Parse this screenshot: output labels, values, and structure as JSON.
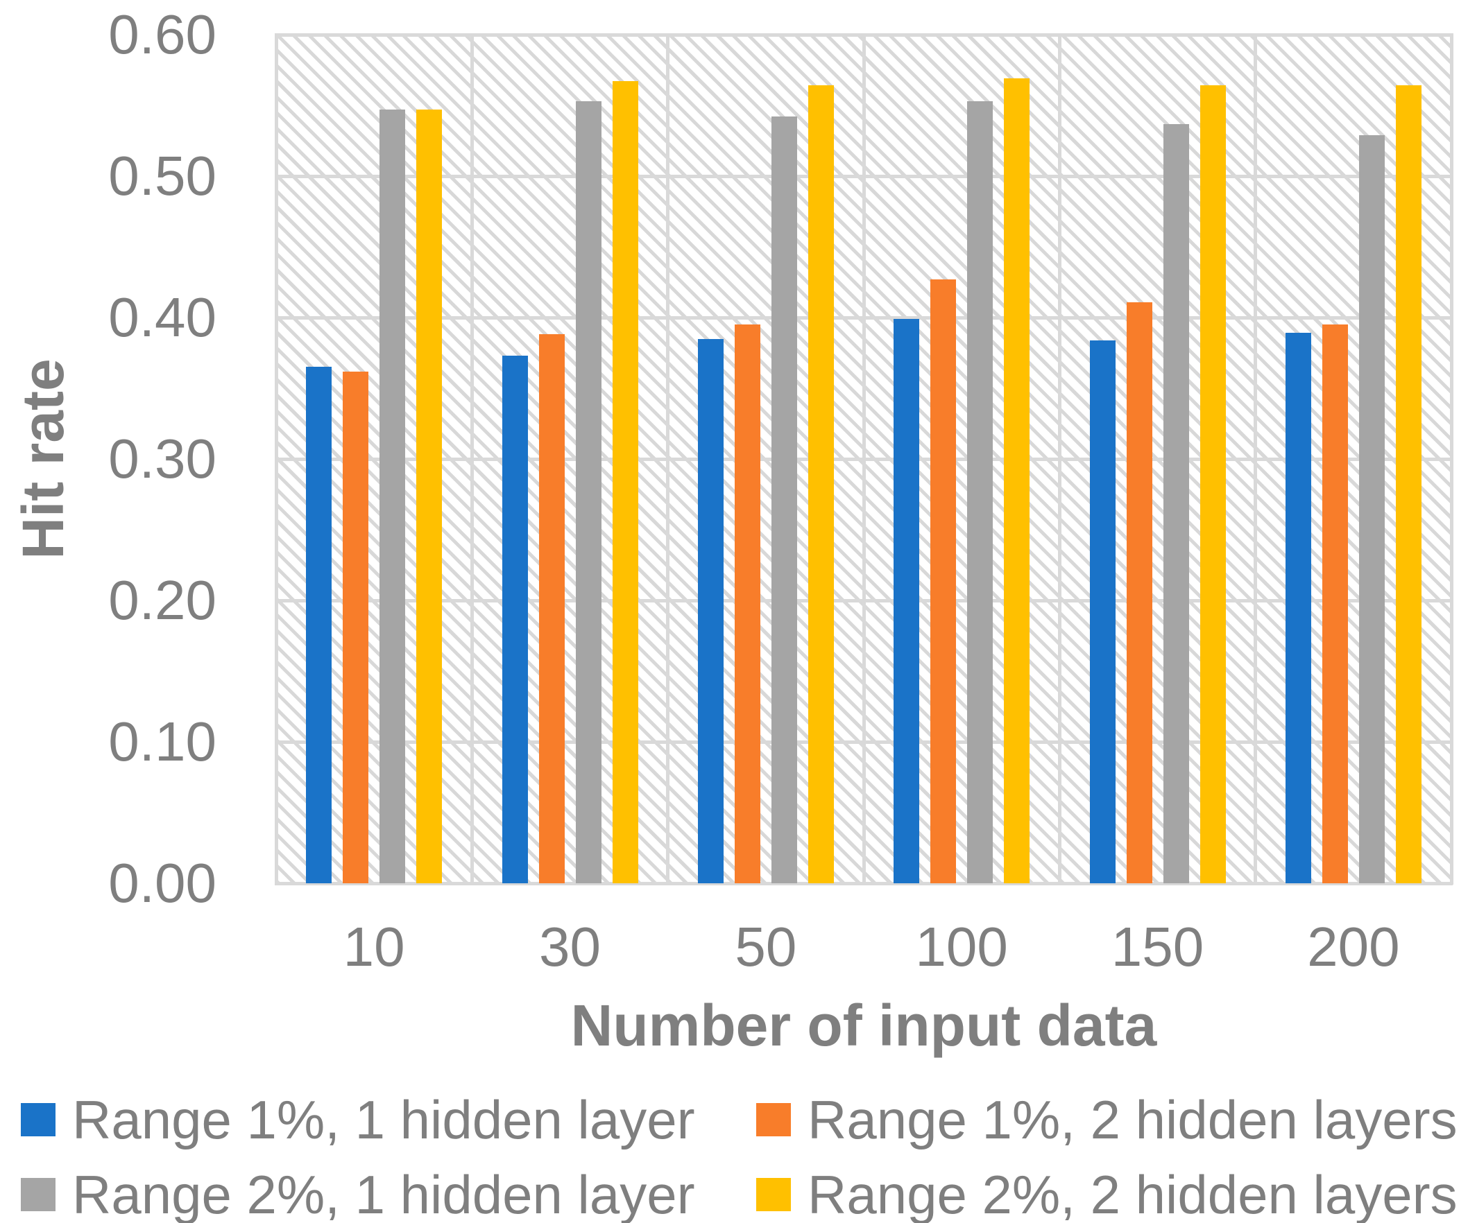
{
  "chart_data": {
    "type": "bar",
    "xlabel": "Number of input data",
    "ylabel": "Hit rate",
    "categories": [
      "10",
      "30",
      "50",
      "100",
      "150",
      "200"
    ],
    "series": [
      {
        "name": "Range 1%, 1 hidden layer",
        "color": "#1a73c8",
        "values": [
          0.365,
          0.373,
          0.385,
          0.399,
          0.384,
          0.389
        ]
      },
      {
        "name": "Range 1%, 2 hidden layers",
        "color": "#f87d2a",
        "values": [
          0.362,
          0.388,
          0.395,
          0.427,
          0.411,
          0.395
        ]
      },
      {
        "name": "Range 2%, 1 hidden layer",
        "color": "#a5a5a5",
        "values": [
          0.547,
          0.553,
          0.542,
          0.553,
          0.537,
          0.529
        ]
      },
      {
        "name": "Range 2%, 2 hidden layers",
        "color": "#ffc000",
        "values": [
          0.547,
          0.567,
          0.564,
          0.569,
          0.564,
          0.564
        ]
      }
    ],
    "ylim": [
      0,
      0.6
    ],
    "ytick_step": 0.1,
    "ytick_labels": [
      "0.00",
      "0.10",
      "0.20",
      "0.30",
      "0.40",
      "0.50",
      "0.60"
    ],
    "grid": true,
    "plot_background": "diagonal-hatch",
    "legend_position": "bottom",
    "colors": {
      "gridline": "#d9d9d9",
      "axis_text": "#7f7f7f",
      "hatch": "#d8d8d8"
    }
  }
}
